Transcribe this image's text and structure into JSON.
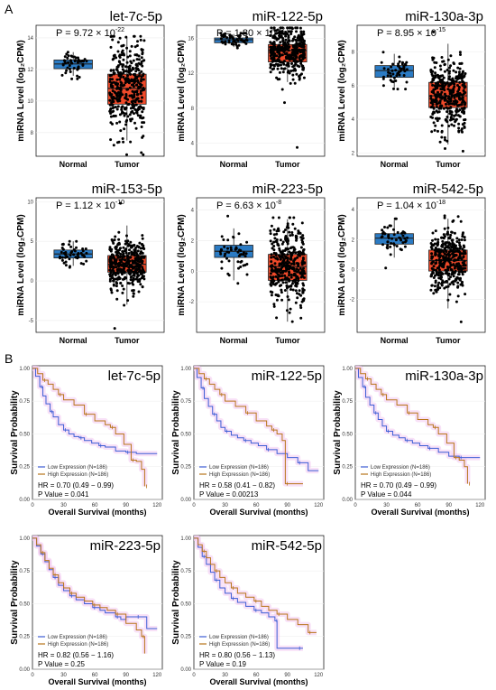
{
  "panel_labels": {
    "a": "A",
    "b": "B"
  },
  "colors": {
    "normal": "#2b7bc4",
    "tumor": "#f04a2a",
    "low": "#3d5ed6",
    "high": "#b8751a",
    "ci": "#f2c8f0",
    "frame": "#222222"
  },
  "chart_data": [
    {
      "type": "box",
      "panel": "A",
      "title": "let-7c-5p",
      "p_mantissa": "9.72",
      "p_exp": "-22",
      "ylabel": "miRNA Level (log₂CPM)",
      "categories": [
        "Normal",
        "Tumor"
      ],
      "ylim": [
        6.5,
        14.8
      ],
      "yticks": [
        8,
        10,
        12,
        14
      ],
      "boxes": [
        {
          "q1": 12.05,
          "median": 12.35,
          "q3": 12.6,
          "lo": 11.6,
          "hi": 13.1,
          "pmin": 11.4,
          "pmax": 13.1,
          "n": 50
        },
        {
          "q1": 9.8,
          "median": 10.8,
          "q3": 11.7,
          "lo": 7.5,
          "hi": 14.0,
          "pmin": 6.6,
          "pmax": 14.1,
          "n": 370
        }
      ]
    },
    {
      "type": "box",
      "panel": "A",
      "title": "miR-122-5p",
      "p_mantissa": "1.80",
      "p_exp": "-12",
      "ylabel": "miRNA Level (log₂CPM)",
      "categories": [
        "Normal",
        "Tumor"
      ],
      "ylim": [
        2.5,
        17.5
      ],
      "yticks": [
        4,
        8,
        12,
        16
      ],
      "boxes": [
        {
          "q1": 15.5,
          "median": 15.85,
          "q3": 16.05,
          "lo": 15.0,
          "hi": 16.5,
          "pmin": 14.9,
          "pmax": 16.6,
          "n": 50
        },
        {
          "q1": 13.3,
          "median": 14.6,
          "q3": 15.3,
          "lo": 11.0,
          "hi": 17.1,
          "pmin": 3.5,
          "pmax": 17.2,
          "n": 370
        }
      ]
    },
    {
      "type": "box",
      "panel": "A",
      "title": "miR-130a-3p",
      "p_mantissa": "8.95",
      "p_exp": "-15",
      "ylabel": "miRNA Level (log₂CPM)",
      "categories": [
        "Normal",
        "Tumor"
      ],
      "ylim": [
        1.8,
        9.6
      ],
      "yticks": [
        2,
        4,
        6,
        8
      ],
      "boxes": [
        {
          "q1": 6.5,
          "median": 6.9,
          "q3": 7.2,
          "lo": 5.9,
          "hi": 7.9,
          "pmin": 5.8,
          "pmax": 8.0,
          "n": 50
        },
        {
          "q1": 4.7,
          "median": 5.4,
          "q3": 6.2,
          "lo": 2.5,
          "hi": 8.5,
          "pmin": 2.1,
          "pmax": 9.2,
          "n": 370
        }
      ]
    },
    {
      "type": "box",
      "panel": "A",
      "title": "miR-153-5p",
      "p_mantissa": "1.12",
      "p_exp": "-10",
      "ylabel": "miRNA Level (log₂CPM)",
      "categories": [
        "Normal",
        "Tumor"
      ],
      "ylim": [
        -6.5,
        10.5
      ],
      "yticks": [
        -5,
        0,
        5,
        10
      ],
      "boxes": [
        {
          "q1": 2.9,
          "median": 3.4,
          "q3": 3.9,
          "lo": 1.9,
          "hi": 5.0,
          "pmin": 1.7,
          "pmax": 5.0,
          "n": 50
        },
        {
          "q1": 1.1,
          "median": 2.1,
          "q3": 3.2,
          "lo": -3.0,
          "hi": 7.0,
          "pmin": -6.0,
          "pmax": 9.8,
          "n": 370
        }
      ]
    },
    {
      "type": "box",
      "panel": "A",
      "title": "miR-223-5p",
      "p_mantissa": "6.63",
      "p_exp": "-8",
      "ylabel": "miRNA Level (log₂CPM)",
      "categories": [
        "Normal",
        "Tumor"
      ],
      "ylim": [
        -4.0,
        4.8
      ],
      "yticks": [
        -2,
        0,
        2,
        4
      ],
      "boxes": [
        {
          "q1": 0.9,
          "median": 1.3,
          "q3": 1.7,
          "lo": -0.6,
          "hi": 2.8,
          "pmin": -0.8,
          "pmax": 3.6,
          "n": 50
        },
        {
          "q1": -0.6,
          "median": 0.3,
          "q3": 1.1,
          "lo": -3.3,
          "hi": 3.4,
          "pmin": -3.3,
          "pmax": 3.5,
          "n": 370
        }
      ]
    },
    {
      "type": "box",
      "panel": "A",
      "title": "miR-542-5p",
      "p_mantissa": "1.04",
      "p_exp": "-18",
      "ylabel": "miRNA Level (log₂CPM)",
      "categories": [
        "Normal",
        "Tumor"
      ],
      "ylim": [
        -4.2,
        4.8
      ],
      "yticks": [
        -2,
        0,
        2,
        4
      ],
      "boxes": [
        {
          "q1": 1.7,
          "median": 2.1,
          "q3": 2.4,
          "lo": 0.8,
          "hi": 3.3,
          "pmin": 0.1,
          "pmax": 3.4,
          "n": 50
        },
        {
          "q1": -0.1,
          "median": 0.6,
          "q3": 1.3,
          "lo": -2.6,
          "hi": 3.4,
          "pmin": -3.5,
          "pmax": 3.6,
          "n": 370
        }
      ]
    },
    {
      "type": "line",
      "panel": "B",
      "subtype": "kaplan-meier",
      "title": "let-7c-5p",
      "xlabel": "Overall Survival (months)",
      "ylabel": "Survival Probability",
      "xlim": [
        0,
        125
      ],
      "ylim": [
        0,
        1.02
      ],
      "xticks": [
        0,
        30,
        60,
        90,
        120
      ],
      "yticks": [
        0,
        0.25,
        0.5,
        0.75,
        1.0
      ],
      "series": [
        {
          "name": "Low Expression (N=186)",
          "x": [
            0,
            3,
            7,
            10,
            13,
            17,
            20,
            25,
            30,
            35,
            40,
            45,
            50,
            57,
            64,
            70,
            80,
            90,
            100,
            120
          ],
          "y": [
            1,
            0.94,
            0.86,
            0.79,
            0.73,
            0.67,
            0.63,
            0.57,
            0.53,
            0.5,
            0.48,
            0.47,
            0.45,
            0.43,
            0.41,
            0.4,
            0.37,
            0.36,
            0.35,
            0.35
          ]
        },
        {
          "name": "High Expression (N=186)",
          "x": [
            0,
            5,
            10,
            15,
            20,
            25,
            30,
            40,
            50,
            60,
            70,
            75,
            80,
            88,
            95,
            100,
            105,
            108
          ],
          "y": [
            1,
            0.96,
            0.91,
            0.88,
            0.84,
            0.8,
            0.76,
            0.72,
            0.65,
            0.6,
            0.57,
            0.55,
            0.5,
            0.42,
            0.3,
            0.29,
            0.23,
            0.1
          ]
        }
      ],
      "stats": {
        "hr": "HR = 0.70 (0.49 − 0.99)",
        "p": "P Value = 0.041"
      }
    },
    {
      "type": "line",
      "panel": "B",
      "subtype": "kaplan-meier",
      "title": "miR-122-5p",
      "xlabel": "Overall Survival (months)",
      "ylabel": "Survival Probability",
      "xlim": [
        0,
        125
      ],
      "ylim": [
        0,
        1.02
      ],
      "xticks": [
        0,
        30,
        60,
        90,
        120
      ],
      "yticks": [
        0,
        0.25,
        0.5,
        0.75,
        1.0
      ],
      "series": [
        {
          "name": "Low Expression (N=186)",
          "x": [
            0,
            3,
            7,
            10,
            14,
            18,
            22,
            26,
            30,
            36,
            42,
            48,
            55,
            62,
            70,
            80,
            90,
            100,
            110,
            120
          ],
          "y": [
            1,
            0.93,
            0.85,
            0.77,
            0.71,
            0.65,
            0.6,
            0.55,
            0.52,
            0.49,
            0.47,
            0.45,
            0.43,
            0.41,
            0.38,
            0.35,
            0.32,
            0.28,
            0.22,
            0.22
          ]
        },
        {
          "name": "High Expression (N=186)",
          "x": [
            0,
            5,
            10,
            15,
            20,
            25,
            30,
            40,
            50,
            60,
            70,
            75,
            80,
            85,
            88,
            105
          ],
          "y": [
            1,
            0.96,
            0.92,
            0.88,
            0.84,
            0.8,
            0.75,
            0.71,
            0.66,
            0.6,
            0.56,
            0.53,
            0.5,
            0.45,
            0.12,
            0.12
          ]
        }
      ],
      "stats": {
        "hr": "HR = 0.58 (0.41 − 0.82)",
        "p": "P Value = 0.00213"
      }
    },
    {
      "type": "line",
      "panel": "B",
      "subtype": "kaplan-meier",
      "title": "miR-130a-3p",
      "xlabel": "Overall Survival (months)",
      "ylabel": "Survival Probability",
      "xlim": [
        0,
        125
      ],
      "ylim": [
        0,
        1.02
      ],
      "xticks": [
        0,
        30,
        60,
        90,
        120
      ],
      "yticks": [
        0,
        0.25,
        0.5,
        0.75,
        1.0
      ],
      "series": [
        {
          "name": "Low Expression (N=186)",
          "x": [
            0,
            3,
            7,
            10,
            14,
            18,
            22,
            26,
            30,
            36,
            42,
            48,
            55,
            62,
            70,
            80,
            90,
            100,
            120
          ],
          "y": [
            1,
            0.93,
            0.86,
            0.78,
            0.72,
            0.66,
            0.61,
            0.56,
            0.52,
            0.49,
            0.47,
            0.45,
            0.43,
            0.41,
            0.39,
            0.36,
            0.33,
            0.32,
            0.32
          ]
        },
        {
          "name": "High Expression (N=186)",
          "x": [
            0,
            5,
            10,
            15,
            20,
            25,
            30,
            40,
            50,
            60,
            70,
            75,
            80,
            88,
            95,
            100,
            105,
            108
          ],
          "y": [
            1,
            0.96,
            0.92,
            0.88,
            0.84,
            0.8,
            0.76,
            0.72,
            0.66,
            0.61,
            0.57,
            0.55,
            0.5,
            0.43,
            0.32,
            0.3,
            0.25,
            0.12
          ]
        }
      ],
      "stats": {
        "hr": "HR = 0.70 (0.49 − 0.99)",
        "p": "P Value = 0.044"
      }
    },
    {
      "type": "line",
      "panel": "B",
      "subtype": "kaplan-meier",
      "title": "miR-223-5p",
      "xlabel": "Overall Survival (months)",
      "ylabel": "Survival Probability",
      "xlim": [
        0,
        125
      ],
      "ylim": [
        0,
        1.02
      ],
      "xticks": [
        0,
        30,
        60,
        90,
        120
      ],
      "yticks": [
        0,
        0.25,
        0.5,
        0.75,
        1.0
      ],
      "series": [
        {
          "name": "Low Expression (N=186)",
          "x": [
            0,
            4,
            8,
            12,
            16,
            20,
            25,
            30,
            36,
            42,
            50,
            58,
            65,
            70,
            80,
            85,
            90,
            100,
            110,
            120
          ],
          "y": [
            1,
            0.94,
            0.88,
            0.82,
            0.76,
            0.7,
            0.64,
            0.6,
            0.56,
            0.53,
            0.5,
            0.47,
            0.45,
            0.43,
            0.4,
            0.38,
            0.4,
            0.4,
            0.31,
            0.31
          ]
        },
        {
          "name": "High Expression (N=186)",
          "x": [
            0,
            4,
            8,
            12,
            16,
            20,
            25,
            30,
            36,
            42,
            50,
            58,
            65,
            72,
            80,
            90,
            100,
            105,
            108
          ],
          "y": [
            1,
            0.95,
            0.89,
            0.83,
            0.77,
            0.72,
            0.66,
            0.62,
            0.58,
            0.55,
            0.52,
            0.49,
            0.47,
            0.45,
            0.42,
            0.35,
            0.3,
            0.25,
            0.12
          ]
        }
      ],
      "stats": {
        "hr": "HR = 0.82 (0.56 − 1.16)",
        "p": "P Value = 0.25"
      }
    },
    {
      "type": "line",
      "panel": "B",
      "subtype": "kaplan-meier",
      "title": "miR-542-5p",
      "xlabel": "Overall Survival (months)",
      "ylabel": "Survival Probability",
      "xlim": [
        0,
        125
      ],
      "ylim": [
        0,
        1.02
      ],
      "xticks": [
        0,
        30,
        60,
        90,
        120
      ],
      "yticks": [
        0,
        0.25,
        0.5,
        0.75,
        1.0
      ],
      "series": [
        {
          "name": "Low Expression (N=186)",
          "x": [
            0,
            4,
            8,
            12,
            16,
            20,
            25,
            30,
            36,
            42,
            50,
            58,
            65,
            72,
            78,
            80,
            90,
            100,
            105
          ],
          "y": [
            1,
            0.93,
            0.86,
            0.8,
            0.74,
            0.68,
            0.62,
            0.58,
            0.54,
            0.51,
            0.48,
            0.45,
            0.43,
            0.4,
            0.37,
            0.16,
            0.16,
            0.16,
            0.16
          ]
        },
        {
          "name": "High Expression (N=186)",
          "x": [
            0,
            4,
            8,
            12,
            16,
            20,
            25,
            30,
            36,
            42,
            50,
            58,
            65,
            72,
            80,
            90,
            100,
            110,
            118
          ],
          "y": [
            1,
            0.95,
            0.9,
            0.85,
            0.8,
            0.75,
            0.7,
            0.66,
            0.62,
            0.58,
            0.55,
            0.52,
            0.48,
            0.45,
            0.42,
            0.38,
            0.34,
            0.28,
            0.28
          ]
        }
      ],
      "stats": {
        "hr": "HR = 0.80 (0.56 − 1.13)",
        "p": "P Value = 0.19"
      }
    }
  ]
}
